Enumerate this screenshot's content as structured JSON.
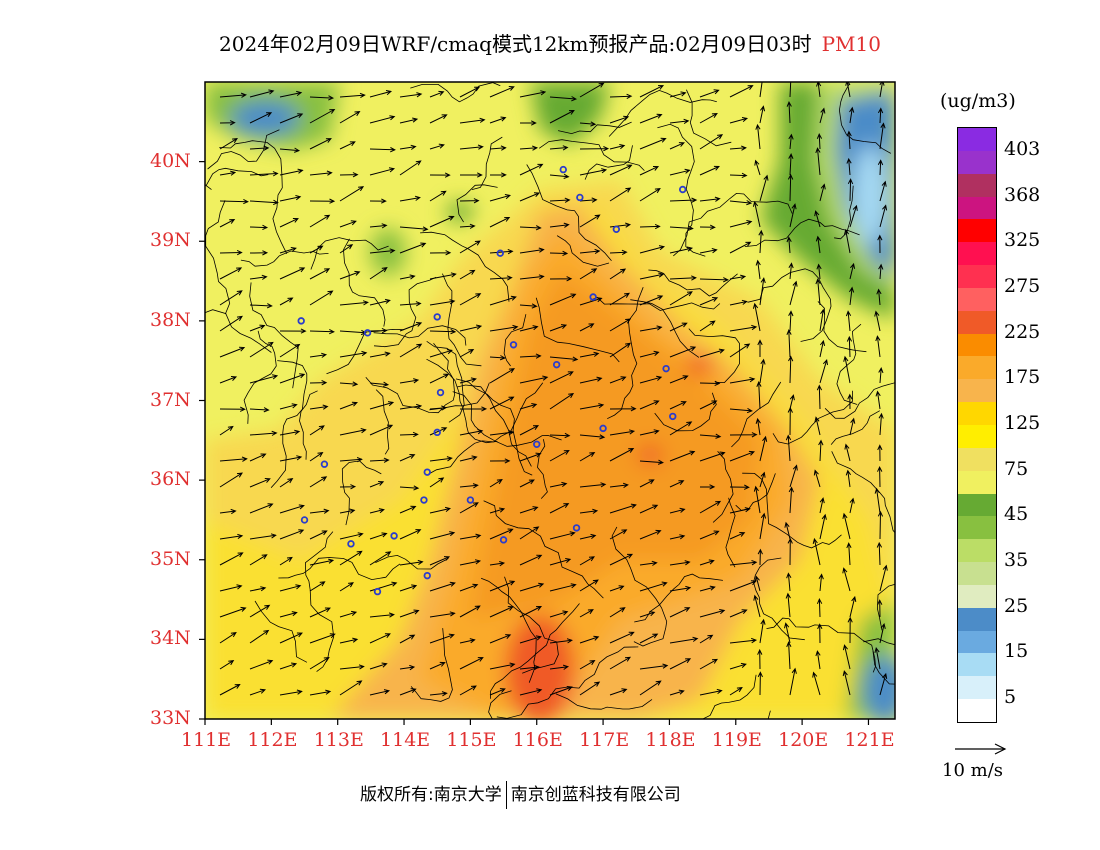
{
  "title": {
    "text": "2024年02月09日WRF/cmaq模式12km预报产品:02月09日03时",
    "pollutant": "PM10"
  },
  "map": {
    "lat_labels": [
      "40N",
      "39N",
      "38N",
      "37N",
      "36N",
      "35N",
      "34N",
      "33N"
    ],
    "lon_labels": [
      "111E",
      "112E",
      "113E",
      "114E",
      "115E",
      "116E",
      "117E",
      "118E",
      "119E",
      "120E",
      "121E"
    ],
    "lat_range": [
      33,
      41
    ],
    "lon_range": [
      111,
      121.4
    ]
  },
  "colorbar": {
    "unit": "(ug/m3)",
    "colors": [
      "#8a2be2",
      "#9932cc",
      "#b03060",
      "#cc1480",
      "#ff0000",
      "#ff1050",
      "#ff3050",
      "#ff6060",
      "#f05a28",
      "#fa8c00",
      "#faaa2a",
      "#f8b44c",
      "#ffd700",
      "#ffee00",
      "#f0e060",
      "#f0f060",
      "#66aa33",
      "#88c040",
      "#bbdd66",
      "#c8e090",
      "#e0ecc0",
      "#4c8cc8",
      "#6aaae0",
      "#a8dcf4",
      "#d8f0fa",
      "#ffffff"
    ],
    "labels": [
      "403",
      "368",
      "325",
      "275",
      "225",
      "175",
      "125",
      "75",
      "45",
      "35",
      "25",
      "15",
      "5"
    ]
  },
  "wind_legend": {
    "label": "10 m/s"
  },
  "footer": {
    "left": "版权所有:南京大学",
    "right": "南京创蓝科技有限公司"
  }
}
